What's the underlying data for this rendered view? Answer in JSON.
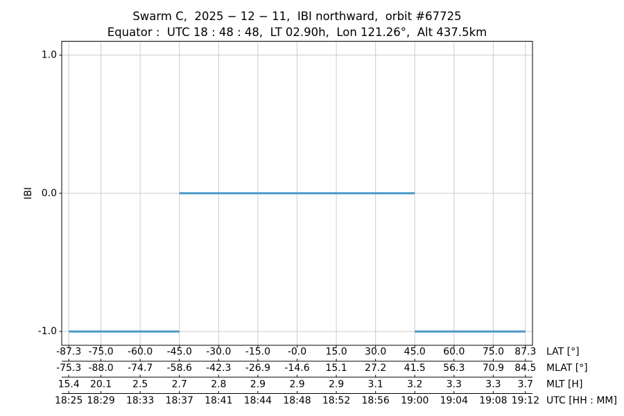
{
  "figure": {
    "title": "Swarm C,  2025 − 12 − 11,  IBI northward,  orbit #67725",
    "subtitle": "Equator :  UTC 18 : 48 : 48,  LT 02.90h,  Lon 121.26°,  Alt 437.5km"
  },
  "chart_data": {
    "type": "line",
    "title": "Swarm C, 2025-12-11, IBI northward, orbit #67725",
    "subtitle": "Equator: UTC 18:48:48, LT 02.90h, Lon 121.26°, Alt 437.5km",
    "ylabel": "IBI",
    "ylim": [
      -1.1,
      1.1
    ],
    "xlim": [
      -90,
      90
    ],
    "grid": true,
    "legend": false,
    "line_color": "#4a98c9",
    "grid_color": "#cccccc",
    "spine_color": "#000000",
    "yticks": {
      "values": [
        1.0,
        0.0,
        -1.0
      ],
      "labels": [
        "1.0",
        "0.0",
        "-1.0"
      ]
    },
    "x_tick_positions": [
      -87.3,
      -75.0,
      -60.0,
      -45.0,
      -30.0,
      -15.0,
      0.0,
      15.0,
      30.0,
      45.0,
      60.0,
      75.0,
      87.3
    ],
    "x_axis_rows": [
      {
        "id": "lat",
        "label": "LAT [°]",
        "ticks": [
          "-87.3",
          "-75.0",
          "-60.0",
          "-45.0",
          "-30.0",
          "-15.0",
          "-0.0",
          "15.0",
          "30.0",
          "45.0",
          "60.0",
          "75.0",
          "87.3"
        ]
      },
      {
        "id": "mlat",
        "label": "MLAT [°]",
        "ticks": [
          "-75.3",
          "-88.0",
          "-74.7",
          "-58.6",
          "-42.3",
          "-26.9",
          "-14.6",
          "15.1",
          "27.2",
          "41.5",
          "56.3",
          "70.9",
          "84.5"
        ]
      },
      {
        "id": "mlt",
        "label": "MLT [H]",
        "ticks": [
          "15.4",
          "20.1",
          "2.5",
          "2.7",
          "2.8",
          "2.9",
          "2.9",
          "2.9",
          "3.1",
          "3.2",
          "3.3",
          "3.3",
          "3.7"
        ]
      },
      {
        "id": "utc",
        "label": "UTC [HH : MM]",
        "ticks": [
          "18:25",
          "18:29",
          "18:33",
          "18:37",
          "18:41",
          "18:44",
          "18:48",
          "18:52",
          "18:56",
          "19:00",
          "19:04",
          "19:08",
          "19:12"
        ]
      }
    ],
    "series": [
      {
        "name": "IBI",
        "segments": [
          {
            "y": -1,
            "x_from": -87.3,
            "x_to": -45.0
          },
          {
            "y": 0,
            "x_from": -45.0,
            "x_to": 45.0
          },
          {
            "y": -1,
            "x_from": 45.0,
            "x_to": 87.3
          }
        ]
      }
    ]
  }
}
